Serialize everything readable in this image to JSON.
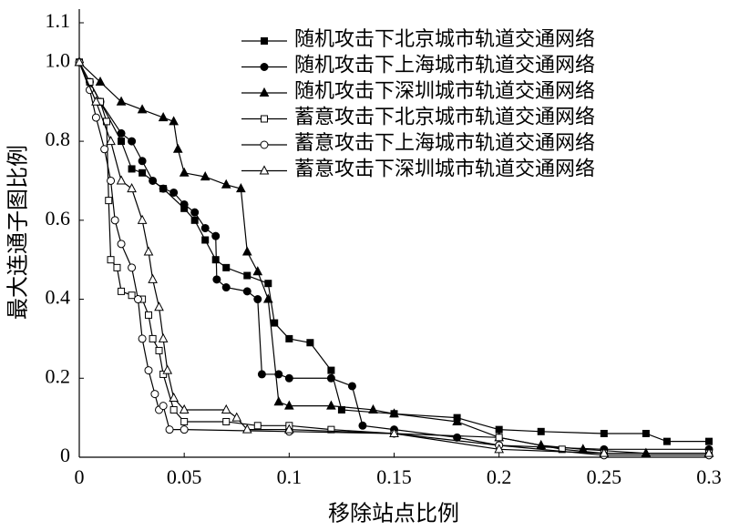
{
  "chart_data": {
    "type": "line",
    "xlabel": "移除站点比例",
    "ylabel": "最大连通子图比例",
    "xlim": [
      0,
      0.3
    ],
    "ylim": [
      0,
      1.1
    ],
    "xticks": [
      0,
      0.05,
      0.1,
      0.15,
      0.2,
      0.25,
      0.3
    ],
    "yticks": [
      0,
      0.2,
      0.4,
      0.6,
      0.8,
      {
        "value": 1,
        "label": "1.0"
      },
      1.1
    ],
    "legend": "upper right",
    "series": [
      {
        "name": "随机攻击下北京城市轨道交通网络",
        "color": "#000000",
        "marker": "square",
        "filled": true,
        "x": [
          0,
          0.01,
          0.02,
          0.025,
          0.03,
          0.04,
          0.05,
          0.055,
          0.06,
          0.065,
          0.07,
          0.08,
          0.09,
          0.093,
          0.1,
          0.11,
          0.12,
          0.125,
          0.15,
          0.18,
          0.2,
          0.22,
          0.25,
          0.27,
          0.28,
          0.3
        ],
        "values": [
          1.0,
          0.9,
          0.8,
          0.73,
          0.72,
          0.68,
          0.63,
          0.6,
          0.55,
          0.5,
          0.48,
          0.46,
          0.44,
          0.34,
          0.3,
          0.29,
          0.22,
          0.12,
          0.11,
          0.1,
          0.07,
          0.065,
          0.06,
          0.06,
          0.04,
          0.04
        ]
      },
      {
        "name": "随机攻击下上海城市轨道交通网络",
        "color": "#000000",
        "marker": "circle",
        "filled": true,
        "x": [
          0,
          0.005,
          0.01,
          0.02,
          0.025,
          0.03,
          0.035,
          0.04,
          0.045,
          0.05,
          0.055,
          0.06,
          0.065,
          0.0655,
          0.07,
          0.08,
          0.085,
          0.087,
          0.095,
          0.1,
          0.12,
          0.13,
          0.135,
          0.15,
          0.18,
          0.2,
          0.25,
          0.3
        ],
        "values": [
          1.0,
          0.95,
          0.9,
          0.82,
          0.8,
          0.75,
          0.7,
          0.68,
          0.67,
          0.64,
          0.62,
          0.58,
          0.56,
          0.45,
          0.43,
          0.42,
          0.4,
          0.21,
          0.21,
          0.2,
          0.2,
          0.18,
          0.08,
          0.07,
          0.05,
          0.03,
          0.02,
          0.02
        ]
      },
      {
        "name": "随机攻击下深圳城市轨道交通网络",
        "color": "#000000",
        "marker": "triangle",
        "filled": true,
        "x": [
          0,
          0.01,
          0.02,
          0.03,
          0.04,
          0.045,
          0.047,
          0.05,
          0.06,
          0.07,
          0.077,
          0.08,
          0.085,
          0.09,
          0.095,
          0.1,
          0.12,
          0.14,
          0.15,
          0.18,
          0.2,
          0.22,
          0.24,
          0.27,
          0.3
        ],
        "values": [
          1.0,
          0.95,
          0.9,
          0.88,
          0.86,
          0.85,
          0.78,
          0.72,
          0.71,
          0.69,
          0.68,
          0.52,
          0.47,
          0.4,
          0.14,
          0.13,
          0.13,
          0.12,
          0.11,
          0.09,
          0.05,
          0.03,
          0.02,
          0.01,
          0.01
        ]
      },
      {
        "name": "蓄意攻击下北京城市轨道交通网络",
        "color": "#000000",
        "marker": "square",
        "filled": false,
        "x": [
          0,
          0.005,
          0.01,
          0.013,
          0.014,
          0.015,
          0.018,
          0.02,
          0.025,
          0.03,
          0.033,
          0.035,
          0.038,
          0.04,
          0.045,
          0.05,
          0.07,
          0.085,
          0.1,
          0.12,
          0.15,
          0.2,
          0.23,
          0.25,
          0.3
        ],
        "values": [
          1.0,
          0.95,
          0.9,
          0.85,
          0.65,
          0.5,
          0.48,
          0.42,
          0.41,
          0.4,
          0.36,
          0.3,
          0.27,
          0.21,
          0.12,
          0.09,
          0.09,
          0.08,
          0.08,
          0.07,
          0.06,
          0.05,
          0.02,
          0.01,
          0.01
        ]
      },
      {
        "name": "蓄意攻击下上海城市轨道交通网络",
        "color": "#000000",
        "marker": "circle",
        "filled": false,
        "x": [
          0,
          0.005,
          0.008,
          0.012,
          0.015,
          0.017,
          0.02,
          0.025,
          0.028,
          0.03,
          0.033,
          0.036,
          0.038,
          0.04,
          0.043,
          0.05,
          0.1,
          0.15,
          0.2,
          0.25,
          0.3
        ],
        "values": [
          1.0,
          0.93,
          0.86,
          0.78,
          0.7,
          0.6,
          0.54,
          0.48,
          0.4,
          0.3,
          0.22,
          0.16,
          0.12,
          0.13,
          0.07,
          0.07,
          0.065,
          0.06,
          0.03,
          0.005,
          0.005
        ]
      },
      {
        "name": "蓄意攻击下深圳城市轨道交通网络",
        "color": "#000000",
        "marker": "triangle",
        "filled": false,
        "x": [
          0,
          0.008,
          0.015,
          0.02,
          0.025,
          0.03,
          0.033,
          0.035,
          0.038,
          0.04,
          0.042,
          0.045,
          0.05,
          0.07,
          0.075,
          0.08,
          0.1,
          0.15,
          0.2,
          0.25,
          0.3
        ],
        "values": [
          1.0,
          0.9,
          0.8,
          0.7,
          0.68,
          0.6,
          0.52,
          0.45,
          0.38,
          0.3,
          0.22,
          0.15,
          0.12,
          0.12,
          0.1,
          0.07,
          0.07,
          0.06,
          0.02,
          0.01,
          0.01
        ]
      }
    ]
  }
}
